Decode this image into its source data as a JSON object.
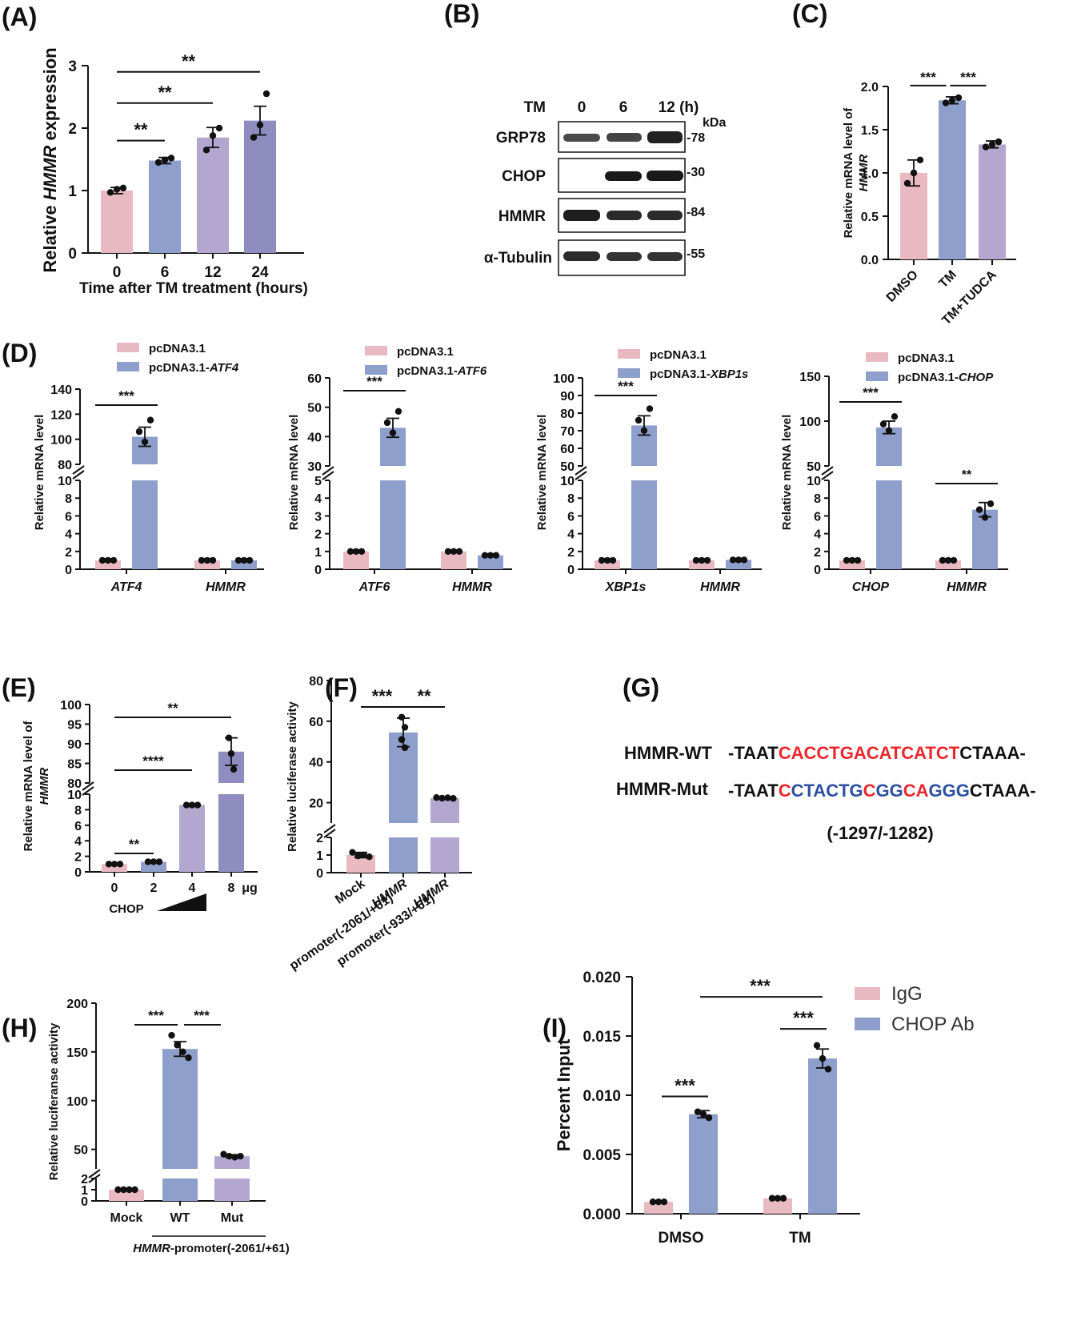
{
  "colors": {
    "pink": "#e9b9c1",
    "blue": "#8e9fcb",
    "lilac": "#b4a7cf",
    "violet": "#8f8cc0",
    "red": "#e8262c",
    "navy": "#2c4fa0"
  },
  "panels": {
    "A": {
      "label": "(A)"
    },
    "B": {
      "label": "(B)",
      "tm_label": "TM",
      "lanes": [
        "0",
        "6",
        "12 (h)"
      ],
      "kda": "kDa",
      "rows": [
        {
          "name": "GRP78",
          "kda": "-78"
        },
        {
          "name": "CHOP",
          "kda": "-30"
        },
        {
          "name": "HMMR",
          "kda": "-84"
        },
        {
          "name": "α-Tubulin",
          "kda": "-55"
        }
      ]
    },
    "C": {
      "label": "(C)"
    },
    "D": {
      "label": "(D)"
    },
    "E": {
      "label": "(E)",
      "dose_label": "CHOP",
      "unit": "μg"
    },
    "F": {
      "label": "(F)"
    },
    "G": {
      "label": "(G)",
      "wt_name": "HMMR-WT",
      "mut_name": "HMMR-Mut",
      "wt_seq": [
        {
          "t": "-TAAT",
          "c": "#111111"
        },
        {
          "t": "CACCTGACATCATCT",
          "c": "#e8262c"
        },
        {
          "t": "CTAAA-",
          "c": "#111111"
        }
      ],
      "mut_seq": [
        {
          "t": "-TAAT",
          "c": "#111111"
        },
        {
          "t": "C",
          "c": "#e8262c"
        },
        {
          "t": "CTACTG",
          "c": "#2c4fa0"
        },
        {
          "t": "C",
          "c": "#e8262c"
        },
        {
          "t": "GG",
          "c": "#2c4fa0"
        },
        {
          "t": "CA",
          "c": "#e8262c"
        },
        {
          "t": "GGG",
          "c": "#2c4fa0"
        },
        {
          "t": "CTAAA-",
          "c": "#111111"
        }
      ],
      "position": "(-1297/-1282)"
    },
    "H": {
      "label": "(H)"
    },
    "I": {
      "label": "(I)"
    }
  },
  "chart_data": [
    {
      "panel": "A",
      "type": "bar",
      "xlabel": "Time after TM treatment (hours)",
      "ylabel_parts": [
        "Relative ",
        "HMMR",
        " expression"
      ],
      "categories": [
        "0",
        "6",
        "12",
        "24"
      ],
      "values": [
        1.0,
        1.48,
        1.85,
        2.12
      ],
      "errors": [
        0.05,
        0.05,
        0.16,
        0.23
      ],
      "points": [
        [
          0.97,
          1.02,
          1.04
        ],
        [
          1.45,
          1.49,
          1.52
        ],
        [
          1.65,
          1.88,
          2.0
        ],
        [
          1.85,
          2.05,
          2.55
        ]
      ],
      "colors": [
        "#e9b9c1",
        "#8e9fcb",
        "#b4a7cf",
        "#8f8cc0"
      ],
      "ylim": [
        0,
        3
      ],
      "yticks": [
        0,
        1,
        2,
        3
      ],
      "sig": [
        {
          "from": 0,
          "to": 1,
          "y": 1.8,
          "text": "**"
        },
        {
          "from": 0,
          "to": 2,
          "y": 2.4,
          "text": "**"
        },
        {
          "from": 0,
          "to": 3,
          "y": 2.9,
          "text": "**"
        }
      ]
    },
    {
      "panel": "C",
      "type": "bar",
      "ylabel_parts": [
        "Relative mRNA level of",
        "HMMR"
      ],
      "categories": [
        "DMSO",
        "TM",
        "TM+TUDCA"
      ],
      "values": [
        1.0,
        1.84,
        1.33
      ],
      "errors": [
        0.15,
        0.04,
        0.04
      ],
      "points": [
        [
          0.88,
          1.0,
          1.15
        ],
        [
          1.81,
          1.84,
          1.87
        ],
        [
          1.3,
          1.33,
          1.36
        ]
      ],
      "colors": [
        "#e9b9c1",
        "#8e9fcb",
        "#b4a7cf"
      ],
      "ylim": [
        0,
        2
      ],
      "yticks": [
        "0.0",
        "0.5",
        "1.0",
        "1.5",
        "2.0"
      ],
      "sig": [
        {
          "from": 0.55,
          "to": 1.45,
          "y": 2.01,
          "text": "***"
        },
        {
          "from": 1.55,
          "to": 2.45,
          "y": 2.01,
          "text": "***"
        }
      ]
    },
    {
      "panel": "D1",
      "type": "bar",
      "ylabel": "Relative mRNA level",
      "legend": [
        {
          "text": "pcDNA3.1",
          "italic": ""
        },
        {
          "text": "pcDNA3.1-",
          "italic": "ATF4"
        }
      ],
      "groups": [
        "ATF4",
        "HMMR"
      ],
      "series": [
        {
          "values": [
            1.0,
            1.0
          ]
        },
        {
          "values": [
            102,
            1.0
          ]
        }
      ],
      "lower_ticks": [
        0,
        2,
        4,
        6,
        8,
        10
      ],
      "upper_ticks": [
        80,
        100,
        120,
        140
      ],
      "sig": [
        {
          "group": 0,
          "text": "***",
          "size": "big"
        }
      ]
    },
    {
      "panel": "D2",
      "type": "bar",
      "ylabel": "Relative mRNA level",
      "legend": [
        {
          "text": "pcDNA3.1",
          "italic": ""
        },
        {
          "text": "pcDNA3.1-",
          "italic": "ATF6"
        }
      ],
      "groups": [
        "ATF6",
        "HMMR"
      ],
      "series": [
        {
          "values": [
            1.0,
            1.0
          ]
        },
        {
          "values": [
            43,
            0.78
          ]
        }
      ],
      "lower_ticks": [
        0,
        1,
        2,
        3,
        4,
        5
      ],
      "upper_ticks": [
        30,
        40,
        50,
        60
      ],
      "sig": [
        {
          "group": 0,
          "text": "***",
          "size": "big"
        }
      ]
    },
    {
      "panel": "D3",
      "type": "bar",
      "ylabel": "Relative mRNA level",
      "legend": [
        {
          "text": "pcDNA3.1",
          "italic": ""
        },
        {
          "text": "pcDNA3.1-",
          "italic": "XBP1s"
        }
      ],
      "groups": [
        "XBP1s",
        "HMMR"
      ],
      "series": [
        {
          "values": [
            1.0,
            1.0
          ]
        },
        {
          "values": [
            73,
            1.05
          ]
        }
      ],
      "lower_ticks": [
        0,
        2,
        4,
        6,
        8,
        10
      ],
      "upper_ticks": [
        50,
        60,
        70,
        80,
        90,
        100
      ],
      "sig": [
        {
          "group": 0,
          "text": "***",
          "size": "big"
        }
      ]
    },
    {
      "panel": "D4",
      "type": "bar",
      "ylabel": "Relative mRNA level",
      "legend": [
        {
          "text": "pcDNA3.1",
          "italic": ""
        },
        {
          "text": "pcDNA3.1-",
          "italic": "CHOP"
        }
      ],
      "groups": [
        "CHOP",
        "HMMR"
      ],
      "series": [
        {
          "values": [
            1.0,
            1.0
          ]
        },
        {
          "values": [
            93,
            6.7
          ]
        }
      ],
      "lower_ticks": [
        0,
        2,
        4,
        6,
        8,
        10
      ],
      "upper_ticks": [
        50,
        100,
        150
      ],
      "sig": [
        {
          "group": 0,
          "text": "***",
          "size": "big"
        },
        {
          "group": 1,
          "text": "**",
          "size": "small"
        }
      ]
    },
    {
      "panel": "E",
      "type": "bar",
      "ylabel_parts": [
        "Relative mRNA level of",
        "HMMR"
      ],
      "categories": [
        "0",
        "2",
        "4",
        "8"
      ],
      "values": [
        1.0,
        1.3,
        8.6,
        88
      ],
      "errors": [
        0.05,
        0.05,
        0.05,
        3.5
      ],
      "colors": [
        "#e9b9c1",
        "#8e9fcb",
        "#b4a7cf",
        "#8f8cc0"
      ],
      "lower_ticks": [
        0,
        2,
        4,
        6,
        8,
        10
      ],
      "upper_ticks": [
        80,
        85,
        90,
        95,
        100
      ],
      "sig": [
        {
          "from": 0,
          "to": 1,
          "text": "**"
        },
        {
          "from": 0,
          "to": 2,
          "text": "****"
        },
        {
          "from": 0,
          "to": 3,
          "text": "**"
        }
      ]
    },
    {
      "panel": "F",
      "type": "bar",
      "ylabel": "Relative luciferase activity",
      "categories": [
        "Mock",
        "HMMR promoter(-2061/+61)",
        "HMMR promoter(-933/+61)"
      ],
      "category_lines": [
        [
          "Mock"
        ],
        [
          "HMMR",
          "promoter(-2061/+61)"
        ],
        [
          "HMMR",
          "promoter(-933/+61)"
        ]
      ],
      "values": [
        1.0,
        54.5,
        22.3
      ],
      "errors": [
        0.15,
        7.0,
        0.3
      ],
      "colors": [
        "#e9b9c1",
        "#8e9fcb",
        "#b4a7cf"
      ],
      "lower_ticks": [
        0,
        1,
        2
      ],
      "upper_ticks": [
        20,
        40,
        60,
        80
      ],
      "sig": [
        {
          "from": 0,
          "to": 1,
          "text": "***"
        },
        {
          "from": 1,
          "to": 2,
          "text": "**"
        }
      ]
    },
    {
      "panel": "H",
      "type": "bar",
      "ylabel": "Relative luciferanse activity",
      "categories": [
        "Mock",
        "WT",
        "Mut"
      ],
      "xgroup_parts": [
        "HMMR",
        "-promoter(-2061/+61)"
      ],
      "values": [
        1.0,
        153,
        43
      ],
      "errors": [
        0.1,
        7.5,
        1.5
      ],
      "colors": [
        "#e9b9c1",
        "#8e9fcb",
        "#b4a7cf"
      ],
      "lower_ticks": [
        0,
        1,
        2
      ],
      "upper_ticks": [
        50,
        100,
        150,
        200
      ],
      "sig": [
        {
          "from": 0,
          "to": 1,
          "text": "***"
        },
        {
          "from": 1,
          "to": 2,
          "text": "***"
        }
      ]
    },
    {
      "panel": "I",
      "type": "bar",
      "ylabel": "Percent Input",
      "categories": [
        "DMSO",
        "TM"
      ],
      "series": [
        {
          "name": "IgG",
          "color": "#e9b9c1",
          "values": [
            0.001,
            0.0013
          ],
          "errors": [
            5e-05,
            5e-05
          ]
        },
        {
          "name": "CHOP Ab",
          "color": "#8e9fcb",
          "values": [
            0.0084,
            0.0131
          ],
          "errors": [
            0.0003,
            0.0008
          ]
        }
      ],
      "ylim": [
        0,
        0.02
      ],
      "yticks": [
        "0.000",
        "0.005",
        "0.010",
        "0.015",
        "0.020"
      ],
      "sig": [
        {
          "group": 0,
          "text": "***"
        },
        {
          "group": 1,
          "text": "***"
        },
        {
          "across": true,
          "text": "***"
        }
      ]
    }
  ]
}
